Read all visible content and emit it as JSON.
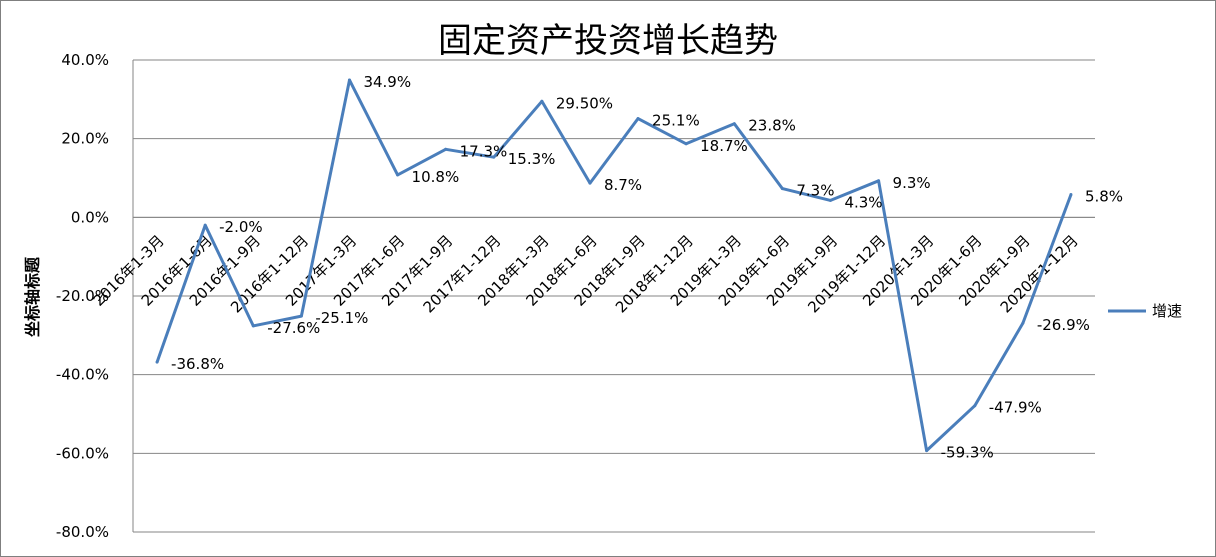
{
  "chart_data": {
    "type": "line",
    "title": "固定资产投资增长趋势",
    "ylabel": "坐标轴标题",
    "ylim": [
      -80,
      40
    ],
    "yticks": [
      40,
      20,
      0,
      -20,
      -40,
      -60,
      -80
    ],
    "ytick_labels": [
      "40.0%",
      "20.0%",
      "0.0%",
      "-20.0%",
      "-40.0%",
      "-60.0%",
      "-80.0%"
    ],
    "grid": true,
    "legend_position": "right",
    "categories": [
      "2016年1-3月",
      "2016年1-6月",
      "2016年1-9月",
      "2016年1-12月",
      "2017年1-3月",
      "2017年1-6月",
      "2017年1-9月",
      "2017年1-12月",
      "2018年1-3月",
      "2018年1-6月",
      "2018年1-9月",
      "2018年1-12月",
      "2019年1-3月",
      "2019年1-6月",
      "2019年1-9月",
      "2019年1-12月",
      "2020年1-3月",
      "2020年1-6月",
      "2020年1-9月",
      "2020年1-12月"
    ],
    "series": [
      {
        "name": "增速",
        "color": "#4a7ebb",
        "values": [
          -36.8,
          -2.0,
          -27.6,
          -25.1,
          34.9,
          10.8,
          17.3,
          15.3,
          29.5,
          8.7,
          25.1,
          18.7,
          23.8,
          7.3,
          4.3,
          9.3,
          -59.3,
          -47.9,
          -26.9,
          5.8
        ],
        "data_labels": [
          "-36.8%",
          "-2.0%",
          "-27.6%",
          "-25.1%",
          "34.9%",
          "10.8%",
          "17.3%",
          "15.3%",
          "29.50%",
          "8.7%",
          "25.1%",
          "18.7%",
          "23.8%",
          "7.3%",
          "4.3%",
          "9.3%",
          "-59.3%",
          "-47.9%",
          "-26.9%",
          "5.8%"
        ]
      }
    ]
  }
}
